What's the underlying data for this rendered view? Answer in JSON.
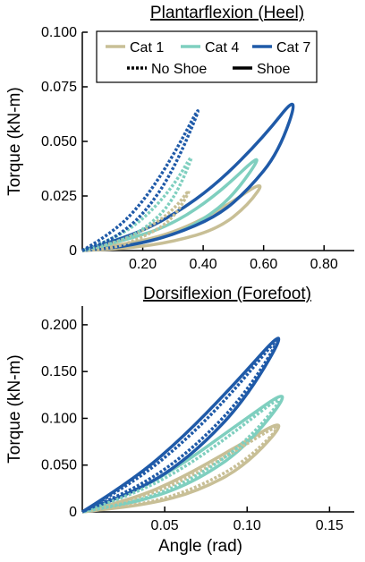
{
  "colors": {
    "cat1": "#c8bf96",
    "cat4": "#7fcfbf",
    "cat7": "#1f5aa8",
    "axis": "#000000"
  },
  "legend": {
    "items": [
      {
        "label": "Cat 1",
        "color": "#c8bf96",
        "style": "solid"
      },
      {
        "label": "Cat 4",
        "color": "#7fcfbf",
        "style": "solid"
      },
      {
        "label": "Cat 7",
        "color": "#1f5aa8",
        "style": "solid"
      },
      {
        "label": "No Shoe",
        "color": "#000000",
        "style": "dotted"
      },
      {
        "label": "Shoe",
        "color": "#000000",
        "style": "solid"
      }
    ],
    "placement": "top-center"
  },
  "chart_data": [
    {
      "type": "line",
      "title": "Plantarflexion (Heel)",
      "xlabel": "",
      "ylabel": "Torque (kN-m)",
      "xlim": [
        0,
        0.9
      ],
      "ylim": [
        0,
        0.1
      ],
      "xticks": [
        "0.20",
        "0.40",
        "0.60",
        "0.80"
      ],
      "xtick_values": [
        0.2,
        0.4,
        0.6,
        0.8
      ],
      "yticks": [
        "0",
        "0.025",
        "0.050",
        "0.075",
        "0.100"
      ],
      "ytick_values": [
        0,
        0.025,
        0.05,
        0.075,
        0.1
      ],
      "grid": false,
      "series": [
        {
          "category": "Cat 1",
          "condition": "No Shoe",
          "color": "#c8bf96",
          "style": "dotted",
          "loading": [
            [
              0.0,
              0.0
            ],
            [
              0.1,
              0.003
            ],
            [
              0.2,
              0.009
            ],
            [
              0.3,
              0.018
            ],
            [
              0.37,
              0.031
            ]
          ],
          "unloading": [
            [
              0.37,
              0.031
            ],
            [
              0.3,
              0.014
            ],
            [
              0.2,
              0.006
            ],
            [
              0.1,
              0.001
            ],
            [
              0.0,
              0.0
            ]
          ]
        },
        {
          "category": "Cat 4",
          "condition": "No Shoe",
          "color": "#7fcfbf",
          "style": "dotted",
          "loading": [
            [
              0.0,
              0.0
            ],
            [
              0.1,
              0.005
            ],
            [
              0.2,
              0.014
            ],
            [
              0.3,
              0.029
            ],
            [
              0.38,
              0.048
            ]
          ],
          "unloading": [
            [
              0.38,
              0.048
            ],
            [
              0.3,
              0.022
            ],
            [
              0.2,
              0.009
            ],
            [
              0.1,
              0.003
            ],
            [
              0.0,
              0.0
            ]
          ]
        },
        {
          "category": "Cat 7",
          "condition": "No Shoe",
          "color": "#1f5aa8",
          "style": "dotted",
          "loading": [
            [
              0.0,
              0.0
            ],
            [
              0.1,
              0.008
            ],
            [
              0.2,
              0.022
            ],
            [
              0.3,
              0.043
            ],
            [
              0.41,
              0.072
            ]
          ],
          "unloading": [
            [
              0.41,
              0.072
            ],
            [
              0.3,
              0.036
            ],
            [
              0.2,
              0.016
            ],
            [
              0.1,
              0.005
            ],
            [
              0.0,
              0.0
            ]
          ]
        },
        {
          "category": "Cat 1",
          "condition": "Shoe",
          "color": "#c8bf96",
          "style": "solid",
          "loading": [
            [
              0.0,
              0.0
            ],
            [
              0.15,
              0.003
            ],
            [
              0.3,
              0.008
            ],
            [
              0.45,
              0.018
            ],
            [
              0.61,
              0.033
            ]
          ],
          "unloading": [
            [
              0.61,
              0.033
            ],
            [
              0.55,
              0.021
            ],
            [
              0.45,
              0.01
            ],
            [
              0.3,
              0.004
            ],
            [
              0.15,
              0.001
            ],
            [
              0.0,
              0.0
            ]
          ]
        },
        {
          "category": "Cat 4",
          "condition": "Shoe",
          "color": "#7fcfbf",
          "style": "solid",
          "loading": [
            [
              0.0,
              0.0
            ],
            [
              0.15,
              0.005
            ],
            [
              0.3,
              0.012
            ],
            [
              0.45,
              0.026
            ],
            [
              0.61,
              0.047
            ]
          ],
          "unloading": [
            [
              0.61,
              0.047
            ],
            [
              0.5,
              0.025
            ],
            [
              0.4,
              0.014
            ],
            [
              0.3,
              0.007
            ],
            [
              0.15,
              0.002
            ],
            [
              0.0,
              0.0
            ]
          ]
        },
        {
          "category": "Cat 7",
          "condition": "Shoe",
          "color": "#1f5aa8",
          "style": "solid",
          "loading": [
            [
              0.0,
              0.0
            ],
            [
              0.15,
              0.006
            ],
            [
              0.3,
              0.016
            ],
            [
              0.45,
              0.031
            ],
            [
              0.6,
              0.052
            ],
            [
              0.72,
              0.073
            ]
          ],
          "unloading": [
            [
              0.72,
              0.073
            ],
            [
              0.65,
              0.045
            ],
            [
              0.55,
              0.028
            ],
            [
              0.45,
              0.016
            ],
            [
              0.3,
              0.007
            ],
            [
              0.15,
              0.002
            ],
            [
              0.0,
              0.0
            ]
          ]
        }
      ]
    },
    {
      "type": "line",
      "title": "Dorsiflexion (Forefoot)",
      "xlabel": "Angle (rad)",
      "ylabel": "Torque (kN-m)",
      "xlim": [
        0,
        0.165
      ],
      "ylim": [
        0,
        0.22
      ],
      "xticks": [
        "0.05",
        "0.10",
        "0.15"
      ],
      "xtick_values": [
        0.05,
        0.1,
        0.15
      ],
      "yticks": [
        "0",
        "0.050",
        "0.100",
        "0.150",
        "0.200"
      ],
      "ytick_values": [
        0,
        0.05,
        0.1,
        0.15,
        0.2
      ],
      "grid": false,
      "series": [
        {
          "category": "Cat 1",
          "condition": "No Shoe",
          "color": "#c8bf96",
          "style": "dotted",
          "loading": [
            [
              0.0,
              0.0
            ],
            [
              0.03,
              0.012
            ],
            [
              0.06,
              0.032
            ],
            [
              0.09,
              0.062
            ],
            [
              0.125,
              0.1
            ]
          ],
          "unloading": [
            [
              0.125,
              0.1
            ],
            [
              0.1,
              0.055
            ],
            [
              0.07,
              0.026
            ],
            [
              0.04,
              0.009
            ],
            [
              0.0,
              0.0
            ]
          ]
        },
        {
          "category": "Cat 4",
          "condition": "No Shoe",
          "color": "#7fcfbf",
          "style": "dotted",
          "loading": [
            [
              0.0,
              0.0
            ],
            [
              0.03,
              0.018
            ],
            [
              0.06,
              0.045
            ],
            [
              0.09,
              0.082
            ],
            [
              0.127,
              0.133
            ]
          ],
          "unloading": [
            [
              0.127,
              0.133
            ],
            [
              0.1,
              0.075
            ],
            [
              0.07,
              0.038
            ],
            [
              0.04,
              0.014
            ],
            [
              0.0,
              0.0
            ]
          ]
        },
        {
          "category": "Cat 7",
          "condition": "No Shoe",
          "color": "#1f5aa8",
          "style": "dotted",
          "loading": [
            [
              0.0,
              0.0
            ],
            [
              0.03,
              0.03
            ],
            [
              0.06,
              0.072
            ],
            [
              0.09,
              0.125
            ],
            [
              0.125,
              0.2
            ]
          ],
          "unloading": [
            [
              0.125,
              0.2
            ],
            [
              0.1,
              0.128
            ],
            [
              0.07,
              0.072
            ],
            [
              0.04,
              0.032
            ],
            [
              0.0,
              0.0
            ]
          ]
        },
        {
          "category": "Cat 1",
          "condition": "Shoe",
          "color": "#c8bf96",
          "style": "solid",
          "loading": [
            [
              0.0,
              0.0
            ],
            [
              0.03,
              0.013
            ],
            [
              0.06,
              0.036
            ],
            [
              0.09,
              0.066
            ],
            [
              0.127,
              0.104
            ]
          ],
          "unloading": [
            [
              0.127,
              0.104
            ],
            [
              0.1,
              0.05
            ],
            [
              0.07,
              0.022
            ],
            [
              0.04,
              0.008
            ],
            [
              0.0,
              0.0
            ]
          ]
        },
        {
          "category": "Cat 4",
          "condition": "Shoe",
          "color": "#7fcfbf",
          "style": "solid",
          "loading": [
            [
              0.0,
              0.0
            ],
            [
              0.03,
              0.02
            ],
            [
              0.06,
              0.05
            ],
            [
              0.09,
              0.088
            ],
            [
              0.13,
              0.138
            ]
          ],
          "unloading": [
            [
              0.13,
              0.138
            ],
            [
              0.1,
              0.07
            ],
            [
              0.07,
              0.034
            ],
            [
              0.04,
              0.013
            ],
            [
              0.0,
              0.0
            ]
          ]
        },
        {
          "category": "Cat 7",
          "condition": "Shoe",
          "color": "#1f5aa8",
          "style": "solid",
          "loading": [
            [
              0.0,
              0.0
            ],
            [
              0.03,
              0.033
            ],
            [
              0.06,
              0.078
            ],
            [
              0.09,
              0.132
            ],
            [
              0.127,
              0.205
            ]
          ],
          "unloading": [
            [
              0.127,
              0.205
            ],
            [
              0.1,
              0.122
            ],
            [
              0.07,
              0.066
            ],
            [
              0.04,
              0.028
            ],
            [
              0.0,
              0.0
            ]
          ]
        }
      ]
    }
  ]
}
